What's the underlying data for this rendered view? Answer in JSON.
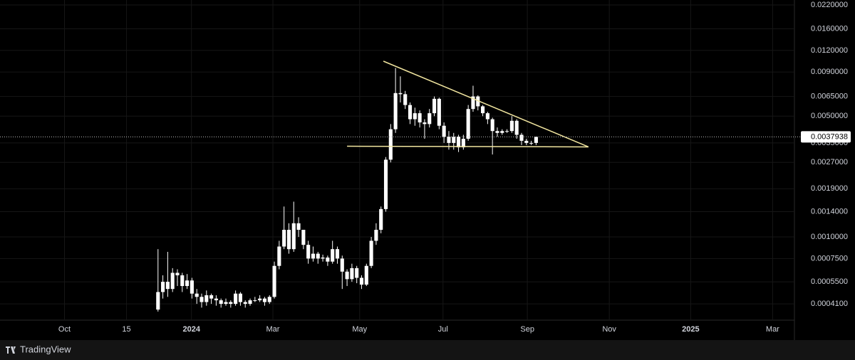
{
  "chart_data": {
    "type": "candlestick",
    "open": [
      0.00038,
      0.00048,
      0.00055,
      0.0005,
      0.00062,
      0.0006,
      0.00052,
      0.00056,
      0.00047,
      0.00045,
      0.00042,
      0.00046,
      0.00044,
      0.00043,
      0.00041,
      0.00042,
      0.00041,
      0.00047,
      0.00042,
      0.00041,
      0.00043,
      0.00043,
      0.00044,
      0.00042,
      0.00045,
      0.00068,
      0.00088,
      0.0011,
      0.00085,
      0.0012,
      0.0011,
      0.0009,
      0.00075,
      0.0008,
      0.00075,
      0.00076,
      0.00072,
      0.00085,
      0.00075,
      0.00063,
      0.00057,
      0.00066,
      0.00058,
      0.00053,
      0.00068,
      0.00095,
      0.0011,
      0.00145,
      0.0028,
      0.0042,
      0.0068,
      0.0067,
      0.0058,
      0.0048,
      0.0052,
      0.0046,
      0.0045,
      0.0052,
      0.0063,
      0.0044,
      0.0038,
      0.0035,
      0.0038,
      0.0033,
      0.0037,
      0.0055,
      0.0065,
      0.0057,
      0.0052,
      0.0048,
      0.0041,
      0.004,
      0.0041,
      0.0041,
      0.0047,
      0.0039,
      0.0036,
      0.0035,
      0.0035
    ],
    "high": [
      0.00085,
      0.0006,
      0.00082,
      0.00066,
      0.00065,
      0.00062,
      0.00061,
      0.00058,
      0.0005,
      0.00047,
      0.00049,
      0.00047,
      0.00046,
      0.00044,
      0.00044,
      0.00043,
      0.00049,
      0.00048,
      0.00043,
      0.00044,
      0.00045,
      0.00046,
      0.00045,
      0.00046,
      0.00072,
      0.00095,
      0.0015,
      0.0012,
      0.0016,
      0.0013,
      0.0011,
      0.00095,
      0.00088,
      0.00082,
      0.00079,
      0.00078,
      0.00095,
      0.00088,
      0.00078,
      0.00065,
      0.0007,
      0.00068,
      0.0006,
      0.0007,
      0.001,
      0.0012,
      0.0015,
      0.0029,
      0.0045,
      0.0095,
      0.0085,
      0.007,
      0.006,
      0.0056,
      0.0054,
      0.0048,
      0.0055,
      0.0065,
      0.0064,
      0.0046,
      0.0041,
      0.004,
      0.0039,
      0.0039,
      0.0058,
      0.0075,
      0.0066,
      0.0058,
      0.0053,
      0.0049,
      0.0043,
      0.0042,
      0.0042,
      0.005,
      0.0048,
      0.004,
      0.0037,
      0.0036,
      0.0038
    ],
    "low": [
      0.00037,
      0.00044,
      0.00045,
      0.00048,
      0.00052,
      0.00048,
      0.0005,
      0.00044,
      0.00041,
      0.00039,
      0.0004,
      0.00041,
      0.0004,
      0.00039,
      0.0004,
      0.00039,
      0.0004,
      0.0004,
      0.00039,
      0.0004,
      0.00042,
      0.00042,
      0.0004,
      0.00041,
      0.00044,
      0.00065,
      0.00085,
      0.0008,
      0.00082,
      0.001,
      0.00085,
      0.0007,
      0.00072,
      0.0007,
      0.00072,
      0.00068,
      0.0007,
      0.0007,
      0.0005,
      0.00052,
      0.00055,
      0.00054,
      0.0005,
      0.00052,
      0.00066,
      0.0009,
      0.00105,
      0.0014,
      0.0027,
      0.004,
      0.006,
      0.0055,
      0.0045,
      0.0044,
      0.0043,
      0.0037,
      0.0043,
      0.005,
      0.0042,
      0.0035,
      0.0032,
      0.0032,
      0.0031,
      0.0032,
      0.0036,
      0.0053,
      0.0054,
      0.005,
      0.0045,
      0.003,
      0.0038,
      0.0039,
      0.004,
      0.004,
      0.0037,
      0.0034,
      0.0034,
      0.0034,
      0.0034
    ],
    "close": [
      0.00048,
      0.00055,
      0.0005,
      0.00062,
      0.0006,
      0.00052,
      0.00056,
      0.00047,
      0.00045,
      0.00042,
      0.00046,
      0.00044,
      0.00043,
      0.00041,
      0.00042,
      0.00041,
      0.00047,
      0.00042,
      0.00041,
      0.00043,
      0.00043,
      0.00044,
      0.00042,
      0.00045,
      0.00068,
      0.00088,
      0.0011,
      0.00085,
      0.0012,
      0.0011,
      0.0009,
      0.00075,
      0.0008,
      0.00075,
      0.00076,
      0.00072,
      0.00085,
      0.00075,
      0.00063,
      0.00057,
      0.00066,
      0.00058,
      0.00053,
      0.00068,
      0.00095,
      0.0011,
      0.00145,
      0.0028,
      0.0042,
      0.0068,
      0.0067,
      0.0058,
      0.0048,
      0.0052,
      0.0046,
      0.0045,
      0.0052,
      0.0063,
      0.0044,
      0.0038,
      0.0035,
      0.0038,
      0.0033,
      0.0037,
      0.0055,
      0.0065,
      0.0057,
      0.0052,
      0.0048,
      0.0041,
      0.004,
      0.0041,
      0.0041,
      0.0047,
      0.0039,
      0.0036,
      0.0035,
      0.0035,
      0.0037938
    ],
    "color": "#ffffff",
    "log_scale": true,
    "grid": true,
    "xlim": [
      -32.6,
      131.3
    ],
    "ylim": [
      0.00033,
      0.0235
    ],
    "xticks": [
      {
        "value": -19.3,
        "label": "Oct"
      },
      {
        "value": -6.5,
        "label": "15"
      },
      {
        "value": 6.9,
        "label": "2024"
      },
      {
        "value": 23.7,
        "label": "Mar"
      },
      {
        "value": 41.6,
        "label": "May"
      },
      {
        "value": 58.8,
        "label": "Jul"
      },
      {
        "value": 76.2,
        "label": "Sep"
      },
      {
        "value": 93.1,
        "label": "Nov"
      },
      {
        "value": 109.9,
        "label": "2025"
      },
      {
        "value": 126.8,
        "label": "Mar"
      }
    ],
    "yticks": [
      {
        "value": 0.022,
        "label": "0.0220000"
      },
      {
        "value": 0.016,
        "label": "0.0160000"
      },
      {
        "value": 0.012,
        "label": "0.0120000"
      },
      {
        "value": 0.009,
        "label": "0.0090000"
      },
      {
        "value": 0.0065,
        "label": "0.0065000"
      },
      {
        "value": 0.005,
        "label": "0.0050000"
      },
      {
        "value": 0.0035,
        "label": "0.0035000"
      },
      {
        "value": 0.0027,
        "label": "0.0027000"
      },
      {
        "value": 0.0019,
        "label": "0.0019000"
      },
      {
        "value": 0.0014,
        "label": "0.0014000"
      },
      {
        "value": 0.001,
        "label": "0.0010000"
      },
      {
        "value": 0.00075,
        "label": "0.0007500"
      },
      {
        "value": 0.00055,
        "label": "0.0005500"
      },
      {
        "value": 0.00041,
        "label": "0.0004100"
      }
    ],
    "last_price": 0.0037938,
    "trendlines": [
      {
        "color": "#f2e6a0",
        "x": [
          46.5,
          88.8
        ],
        "y": [
          0.0104,
          0.00332
        ]
      },
      {
        "color": "#f2e6a0",
        "x": [
          39,
          88.8
        ],
        "y": [
          0.00335,
          0.00332
        ]
      }
    ],
    "brand": "TradingView"
  }
}
